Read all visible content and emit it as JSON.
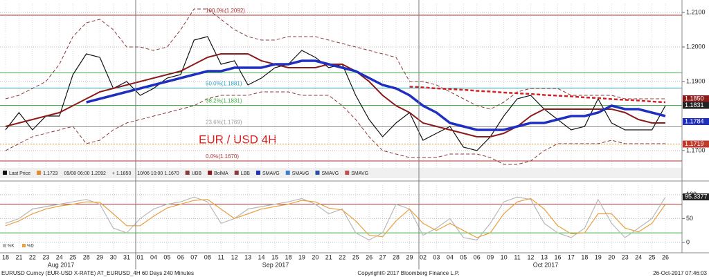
{
  "chart_data": [
    {
      "type": "line",
      "title": "EUR / USD 4H",
      "categories": [
        "18",
        "21",
        "22",
        "23",
        "24",
        "25",
        "28",
        "29",
        "30",
        "31",
        "01",
        "04",
        "05",
        "06",
        "07",
        "08",
        "11",
        "12",
        "13",
        "14",
        "15",
        "18",
        "19",
        "20",
        "21",
        "22",
        "25",
        "26",
        "27",
        "28",
        "29",
        "02",
        "03",
        "04",
        "05",
        "06",
        "09",
        "10",
        "11",
        "12",
        "13",
        "16",
        "17",
        "18",
        "19",
        "20",
        "23",
        "24",
        "25",
        "26"
      ],
      "months": [
        "Aug 2017",
        "Sep 2017",
        "Oct 2017"
      ],
      "ylim": [
        1.165,
        1.2126
      ],
      "yticks": [
        {
          "value": 1.21,
          "label": "1.2100"
        },
        {
          "value": 1.2,
          "label": "1.2000"
        },
        {
          "value": 1.19,
          "label": "1.1900"
        },
        {
          "value": 1.17,
          "label": "1.1700"
        }
      ],
      "grid": true,
      "series": [
        {
          "name": "Last Price",
          "color": "#111111",
          "width": 1.2,
          "values": [
            1.176,
            1.181,
            1.176,
            1.18,
            1.18,
            1.192,
            1.198,
            1.197,
            1.188,
            1.19,
            1.186,
            1.188,
            1.191,
            1.192,
            1.202,
            1.203,
            1.195,
            1.196,
            1.189,
            1.191,
            1.194,
            1.195,
            1.199,
            1.197,
            1.194,
            1.195,
            1.186,
            1.179,
            1.174,
            1.178,
            1.181,
            1.173,
            1.175,
            1.177,
            1.171,
            1.17,
            1.174,
            1.18,
            1.185,
            1.186,
            1.182,
            1.179,
            1.176,
            1.177,
            1.185,
            1.178,
            1.176,
            1.176,
            1.176,
            1.183
          ]
        },
        {
          "name": "UBB",
          "color": "#8b3a3a",
          "dash": true,
          "values": [
            1.185,
            1.186,
            1.188,
            1.19,
            1.195,
            1.203,
            1.207,
            1.208,
            1.205,
            1.2,
            1.2,
            1.199,
            1.2,
            1.205,
            1.211,
            1.211,
            1.208,
            1.205,
            1.203,
            1.202,
            1.202,
            1.203,
            1.203,
            1.203,
            1.202,
            1.201,
            1.2,
            1.199,
            1.198,
            1.197,
            1.19,
            1.19,
            1.189,
            1.187,
            1.185,
            1.183,
            1.182,
            1.184,
            1.187,
            1.188,
            1.188,
            1.188,
            1.186,
            1.186,
            1.186,
            1.186,
            1.185,
            1.185,
            1.185,
            1.185
          ]
        },
        {
          "name": "BolMA",
          "color": "#8b1a1a",
          "width": 2,
          "values": [
            1.177,
            1.178,
            1.179,
            1.18,
            1.181,
            1.183,
            1.185,
            1.187,
            1.188,
            1.189,
            1.19,
            1.191,
            1.192,
            1.193,
            1.195,
            1.197,
            1.198,
            1.198,
            1.198,
            1.196,
            1.195,
            1.194,
            1.194,
            1.194,
            1.195,
            1.195,
            1.193,
            1.19,
            1.186,
            1.183,
            1.181,
            1.178,
            1.177,
            1.176,
            1.175,
            1.174,
            1.174,
            1.175,
            1.177,
            1.18,
            1.182,
            1.182,
            1.182,
            1.182,
            1.182,
            1.182,
            1.181,
            1.179,
            1.178,
            1.178
          ]
        },
        {
          "name": "LBB",
          "color": "#8b3a3a",
          "dash": true,
          "values": [
            1.17,
            1.172,
            1.174,
            1.175,
            1.176,
            1.177,
            1.172,
            1.173,
            1.176,
            1.178,
            1.179,
            1.18,
            1.181,
            1.182,
            1.183,
            1.185,
            1.186,
            1.186,
            1.186,
            1.187,
            1.187,
            1.187,
            1.186,
            1.186,
            1.186,
            1.183,
            1.179,
            1.174,
            1.17,
            1.169,
            1.168,
            1.168,
            1.168,
            1.169,
            1.169,
            1.169,
            1.168,
            1.166,
            1.166,
            1.167,
            1.17,
            1.172,
            1.172,
            1.172,
            1.172,
            1.173,
            1.172,
            1.172,
            1.172,
            1.172
          ]
        },
        {
          "name": "SMAVG",
          "color": "#1f2fc0",
          "width": 3.5,
          "values": [
            null,
            null,
            null,
            null,
            null,
            null,
            1.184,
            1.185,
            1.186,
            1.187,
            1.188,
            1.189,
            1.19,
            1.191,
            1.192,
            1.193,
            1.193,
            1.194,
            1.194,
            1.194,
            1.195,
            1.195,
            1.196,
            1.196,
            1.195,
            1.194,
            1.193,
            1.191,
            1.189,
            1.188,
            1.186,
            1.183,
            1.181,
            1.178,
            1.177,
            1.176,
            1.176,
            1.176,
            1.177,
            1.178,
            1.178,
            1.179,
            1.18,
            1.18,
            1.181,
            1.183,
            1.182,
            1.182,
            1.181,
            1.18
          ]
        },
        {
          "color": "#d42020",
          "width": 2.5,
          "dash": true,
          "values": [
            null,
            null,
            null,
            null,
            null,
            null,
            null,
            null,
            null,
            null,
            null,
            null,
            null,
            null,
            null,
            null,
            null,
            null,
            null,
            null,
            null,
            null,
            null,
            null,
            null,
            null,
            null,
            null,
            null,
            null,
            1.1885,
            1.1883,
            1.188,
            1.1878,
            1.1876,
            1.1873,
            1.1871,
            1.1868,
            1.1866,
            1.1864,
            1.1861,
            1.1859,
            1.1857,
            1.1854,
            1.1852,
            1.1849,
            1.1847,
            1.1845,
            1.1842,
            1.184
          ]
        }
      ],
      "levels": [
        {
          "value": 1.2092,
          "label": "100.0%(1.2092)",
          "color": "#b03030"
        },
        {
          "value": 1.1925,
          "color": "#3cb043"
        },
        {
          "value": 1.1881,
          "label": "50.0%(1.1881)",
          "color": "#2aa0c0"
        },
        {
          "value": 1.1831,
          "label": "38.2%(1.1831)",
          "color": "#3cb043"
        },
        {
          "value": 1.1769,
          "label": "23.6%(1.1769)",
          "color": "#999999"
        },
        {
          "value": 1.1719,
          "color": "#e08a2c"
        },
        {
          "value": 1.167,
          "label": "0.0%(1.1670)",
          "color": "#b03030"
        }
      ],
      "badges": [
        {
          "value": 1.185,
          "label": "1.1850",
          "color": "#8b1a1a"
        },
        {
          "value": 1.1831,
          "label": "1.1831",
          "color": "#222222"
        },
        {
          "value": 1.1784,
          "label": "1.1784",
          "color": "#1f2fc0"
        },
        {
          "value": 1.1719,
          "label": "1.1719",
          "color": "#c0392b"
        }
      ],
      "legend": [
        {
          "label": "Last Price",
          "color": "#111111"
        },
        {
          "label": "1.1723",
          "color": "#e08a2c"
        },
        {
          "label": "09/08 06:00 1.2092"
        },
        {
          "label": "+ 1.1850"
        },
        {
          "label": "10/06 10:00 1.1670"
        },
        {
          "label": "UBB",
          "color": "#8b3a3a"
        },
        {
          "label": "BolMA",
          "color": "#8b1a1a"
        },
        {
          "label": "LBB",
          "color": "#8b3a3a"
        },
        {
          "label": "SMAVG",
          "color": "#1f2fc0"
        },
        {
          "label": "SMAVG",
          "color": "#3a7bd5"
        },
        {
          "label": "SMAVG",
          "color": "#2a4fa0"
        },
        {
          "label": "SMAVG",
          "color": "#c05050"
        }
      ]
    },
    {
      "type": "line",
      "ylim": [
        -16,
        120
      ],
      "yticks": [
        100,
        50,
        0
      ],
      "levels": [
        {
          "value": 80,
          "color": "#b03030"
        },
        {
          "value": 20,
          "color": "#3cb043"
        }
      ],
      "badges": [
        {
          "value": 95.3377,
          "label": "95.3377",
          "color": "#222222"
        }
      ],
      "series": [
        {
          "name": "%K",
          "color": "#b8b8b8",
          "width": 1.2,
          "values": [
            40,
            50,
            70,
            75,
            80,
            85,
            90,
            80,
            30,
            20,
            50,
            70,
            80,
            85,
            95,
            85,
            40,
            50,
            70,
            75,
            80,
            85,
            92,
            80,
            60,
            70,
            20,
            5,
            20,
            80,
            70,
            15,
            30,
            50,
            10,
            5,
            40,
            85,
            95,
            90,
            40,
            20,
            10,
            30,
            90,
            40,
            10,
            30,
            50,
            95
          ]
        },
        {
          "name": "%D",
          "color": "#e8a040",
          "width": 1.2,
          "values": [
            35,
            45,
            60,
            70,
            76,
            80,
            85,
            84,
            60,
            35,
            35,
            55,
            72,
            80,
            88,
            90,
            70,
            50,
            60,
            70,
            75,
            80,
            88,
            85,
            72,
            68,
            45,
            15,
            12,
            45,
            70,
            40,
            25,
            40,
            25,
            10,
            20,
            60,
            85,
            92,
            70,
            35,
            18,
            20,
            60,
            60,
            30,
            22,
            40,
            80
          ]
        }
      ]
    }
  ],
  "footer": {
    "left": "EURUSD Curncy (EUR-USD X-RATE) AT_EURUSD_4H 60 Days 240 Minutes",
    "center": "Copyright© 2017 Bloomberg Finance L.P.",
    "right": "26-Oct-2017 07:46:03"
  }
}
